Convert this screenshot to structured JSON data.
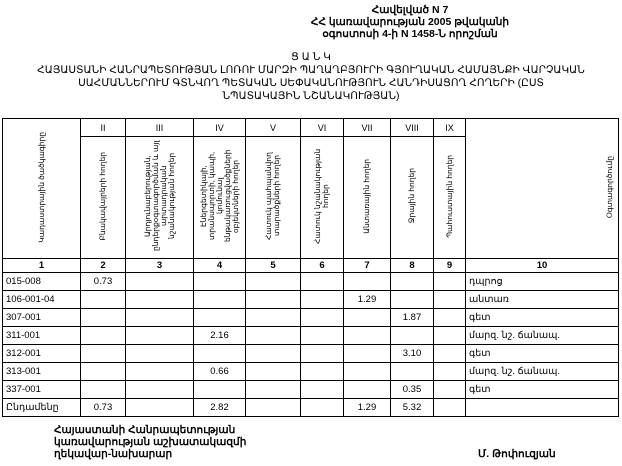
{
  "header": {
    "lines": [
      "Հավելված N 7",
      "ՀՀ կառավարության 2005 թվականի",
      "օգոստոսի 4-ի N 1458-Ն որոշման"
    ]
  },
  "title": {
    "word": "Ց Ա Ն Կ",
    "lines": [
      "ՀԱՅԱՍՏԱՆԻ ՀԱՆՐԱՊԵՏՈՒԹՅԱՆ ԼՈՌՈՒ ՄԱՐԶԻ ՊԱՂԱՂԲՅՈՒՐԻ ԳՅՈՒՂԱԿԱՆ ՀԱՄԱՅՆՔԻ ՎԱՐՉԱԿԱՆ",
      "ՍԱՀՄԱՆՆԵՐՈՒՄ ԳՏՆՎՈՂ ՊԵՏԱԿԱՆ ՍԵՓԱԿԱՆՈՒԹՅՈՒՆ ՀԱՆԴԻՍԱՑՈՂ ՀՈՂԵՐԻ (ԸՍՏ",
      "ՆՊԱՏԱԿԱՅԻՆ ՆՇԱՆԱԿՈՒԹՅԱՆ)"
    ]
  },
  "table": {
    "roman": [
      "",
      "II",
      "III",
      "IV",
      "V",
      "VI",
      "VII",
      "VIII",
      "IX",
      ""
    ],
    "headers": [
      "Կադաստրային ծածկագիրը",
      "Բնակավայրերի հողեր",
      "Արդյունաբերության, ընդերքօգտագործման և այլ արտադրական նշանակության հողեր",
      "Էներգետիկայի, տրանսպորտի, կապի, կոմունալ ենթակառուցվածքների օբյեկտների հողեր",
      "Հատուկ պահպանվող տարածքների հողեր",
      "Հատուկ նշանակության հողեր",
      "Անտառային հողեր",
      "Ջրային հողեր",
      "Պահուստային հողեր",
      "Օգտագործումը"
    ],
    "numbers": [
      "1",
      "2",
      "3",
      "4",
      "5",
      "6",
      "7",
      "8",
      "9",
      "10"
    ],
    "rows": [
      [
        "015-008",
        "0.73",
        "",
        "",
        "",
        "",
        "",
        "",
        "",
        "դպրոց"
      ],
      [
        "106-001-04",
        "",
        "",
        "",
        "",
        "",
        "1.29",
        "",
        "",
        "անտառ"
      ],
      [
        "307-001",
        "",
        "",
        "",
        "",
        "",
        "",
        "1.87",
        "",
        "գետ"
      ],
      [
        "311-001",
        "",
        "",
        "2.16",
        "",
        "",
        "",
        "",
        "",
        "մարզ. նշ. ճանապ."
      ],
      [
        "312-001",
        "",
        "",
        "",
        "",
        "",
        "",
        "3.10",
        "",
        "գետ"
      ],
      [
        "313-001",
        "",
        "",
        "0.66",
        "",
        "",
        "",
        "",
        "",
        "մարզ. նշ. ճանապ."
      ],
      [
        "337-001",
        "",
        "",
        "",
        "",
        "",
        "",
        "0.35",
        "",
        "գետ"
      ],
      [
        "Ընդամենը",
        "0.73",
        "",
        "2.82",
        "",
        "",
        "1.29",
        "5.32",
        "",
        ""
      ]
    ]
  },
  "footer": {
    "lines": [
      "Հայաստանի Հանրապետության",
      "կառավարության աշխատակազմի",
      "ղեկավար-նախարար"
    ],
    "signature": "Մ. Թոփուզյան"
  }
}
